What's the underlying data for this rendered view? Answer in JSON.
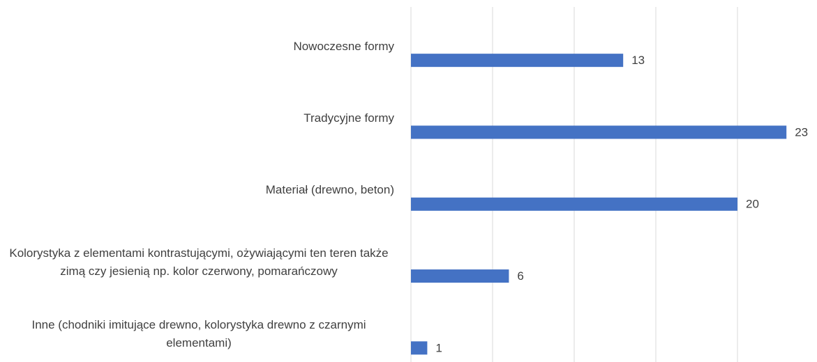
{
  "chart_data": {
    "type": "barh",
    "categories": [
      "Nowoczesne formy",
      "Tradycyjne formy",
      "Materiał (drewno, beton)",
      "Kolorystyka z elementami kontrastującymi, ożywiającymi ten teren także zimą czy jesienią np. kolor czerwony, pomarańczowy",
      "Inne (chodniki imitujące drewno, kolorystyka drewno z czarnymi elementami)"
    ],
    "values": [
      13,
      23,
      20,
      6,
      1
    ],
    "color": "#4472c4",
    "xlim": [
      0,
      24
    ],
    "xticks": [
      0,
      5,
      10,
      15,
      20
    ],
    "grid": true
  }
}
